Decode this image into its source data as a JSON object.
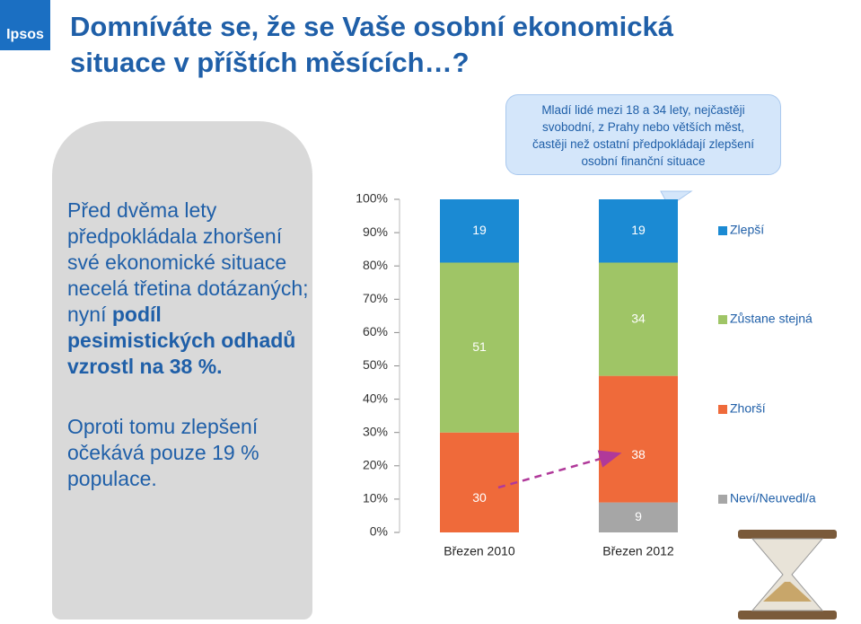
{
  "logo": "Ipsos",
  "title_lines": [
    "Domníváte se, že se Vaše osobní ekonomická",
    "situace v příštích měsících…?"
  ],
  "callout": {
    "lines": [
      "Mladí lidé mezi 18 a 34 lety, nejčastěji",
      "svobodní, z Prahy nebo větších měst,",
      "častěji než ostatní předpokládají zlepšení",
      "osobní finanční situace"
    ]
  },
  "panel": {
    "paragraph1": {
      "normal": "Před dvěma lety předpokládala zhoršení své ekonomické situace necelá třetina dotázaných; nyní ",
      "bold": "podíl pesimistických odhadů vzrostl na 38 %."
    },
    "paragraph2": "Oproti tomu zlepšení očekává pouze 19 % populace."
  },
  "chart_data": {
    "type": "stacked_bar",
    "categories": [
      "Březen 2010",
      "Březen 2012"
    ],
    "series": [
      {
        "name": "Zlepší",
        "color": "#1b8ad3",
        "values": [
          19,
          19
        ]
      },
      {
        "name": "Zůstane stejná",
        "color": "#9fc566",
        "values": [
          51,
          34
        ]
      },
      {
        "name": "Zhorší",
        "color": "#ef6a3a",
        "values": [
          30,
          38
        ]
      },
      {
        "name": "Neví/Neuvedl/a",
        "color": "#a6a6a6",
        "values": [
          null,
          9
        ]
      }
    ],
    "ylim": [
      0,
      100
    ],
    "yticks": [
      {
        "value": 0,
        "label": "0%"
      },
      {
        "value": 10,
        "label": "10%"
      },
      {
        "value": 20,
        "label": "20%"
      },
      {
        "value": 30,
        "label": "30%"
      },
      {
        "value": 40,
        "label": "40%"
      },
      {
        "value": 50,
        "label": "50%"
      },
      {
        "value": 60,
        "label": "60%"
      },
      {
        "value": 70,
        "label": "70%"
      },
      {
        "value": 80,
        "label": "80%"
      },
      {
        "value": 90,
        "label": "90%"
      },
      {
        "value": 100,
        "label": "100%"
      }
    ]
  }
}
